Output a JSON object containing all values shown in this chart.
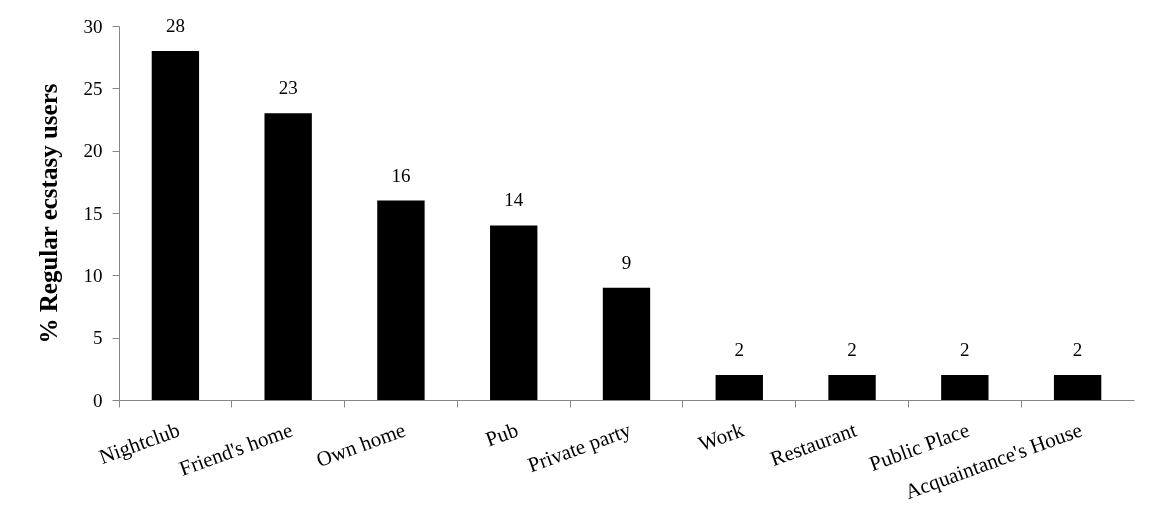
{
  "chart_data": {
    "type": "bar",
    "ylabel": "% Regular ecstasy users",
    "categories": [
      "Nightclub",
      "Friend's home",
      "Own home",
      "Pub",
      "Private party",
      "Work",
      "Restaurant",
      "Public Place",
      "Acquaintance's House"
    ],
    "values": [
      28,
      23,
      16,
      14,
      9,
      2,
      2,
      2,
      2
    ],
    "color": "#000000",
    "ylim": [
      0,
      30
    ],
    "yticks": [
      0,
      5,
      10,
      15,
      20,
      25,
      30
    ],
    "data_labels": true
  }
}
